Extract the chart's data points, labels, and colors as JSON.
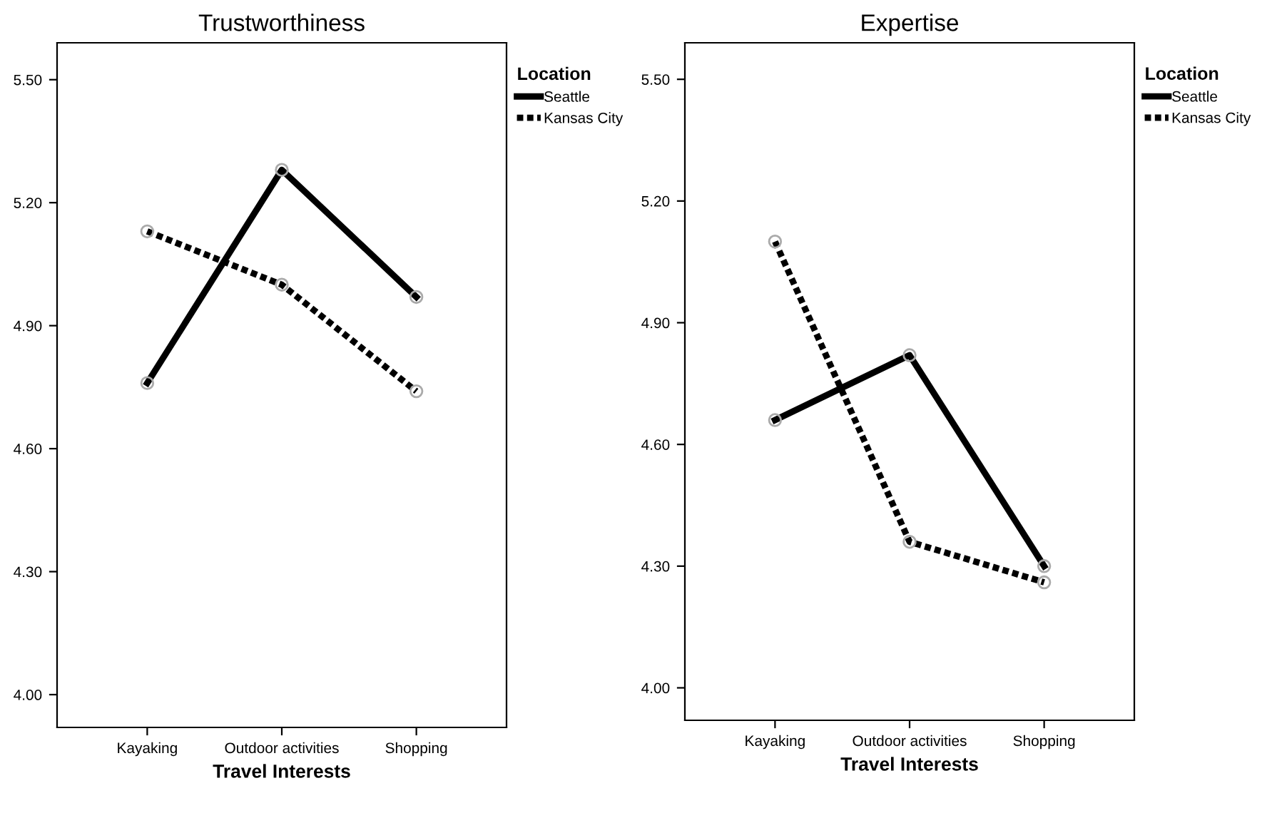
{
  "chart_data": [
    {
      "type": "line",
      "title": "Trustworthiness",
      "xlabel": "Travel Interests",
      "legend_title": "Location",
      "legend": "top right",
      "grid": false,
      "marker": "circle",
      "categories": [
        "Kayaking",
        "Outdoor activities",
        "Shopping"
      ],
      "ylim": [
        3.92,
        5.59
      ],
      "yticks": [
        {
          "value": 4.0,
          "label": "4.00"
        },
        {
          "value": 4.3,
          "label": "4.30"
        },
        {
          "value": 4.6,
          "label": "4.60"
        },
        {
          "value": 4.9,
          "label": "4.90"
        },
        {
          "value": 5.2,
          "label": "5.20"
        },
        {
          "value": 5.5,
          "label": "5.50"
        }
      ],
      "series": [
        {
          "name": "Seattle",
          "color": "#000000",
          "line_style": "solid",
          "values": [
            4.76,
            5.28,
            4.97
          ]
        },
        {
          "name": "Kansas City",
          "color": "#000000",
          "line_style": "dotted",
          "values": [
            5.13,
            5.0,
            4.74
          ]
        }
      ]
    },
    {
      "type": "line",
      "title": "Expertise",
      "xlabel": "Travel Interests",
      "legend_title": "Location",
      "legend": "top right",
      "grid": false,
      "marker": "circle",
      "categories": [
        "Kayaking",
        "Outdoor activities",
        "Shopping"
      ],
      "ylim": [
        3.92,
        5.59
      ],
      "yticks": [
        {
          "value": 4.0,
          "label": "4.00"
        },
        {
          "value": 4.3,
          "label": "4.30"
        },
        {
          "value": 4.6,
          "label": "4.60"
        },
        {
          "value": 4.9,
          "label": "4.90"
        },
        {
          "value": 5.2,
          "label": "5.20"
        },
        {
          "value": 5.5,
          "label": "5.50"
        }
      ],
      "series": [
        {
          "name": "Seattle",
          "color": "#000000",
          "line_style": "solid",
          "values": [
            4.66,
            4.82,
            4.3
          ]
        },
        {
          "name": "Kansas City",
          "color": "#000000",
          "line_style": "dotted",
          "values": [
            5.1,
            4.36,
            4.26
          ]
        }
      ]
    }
  ]
}
